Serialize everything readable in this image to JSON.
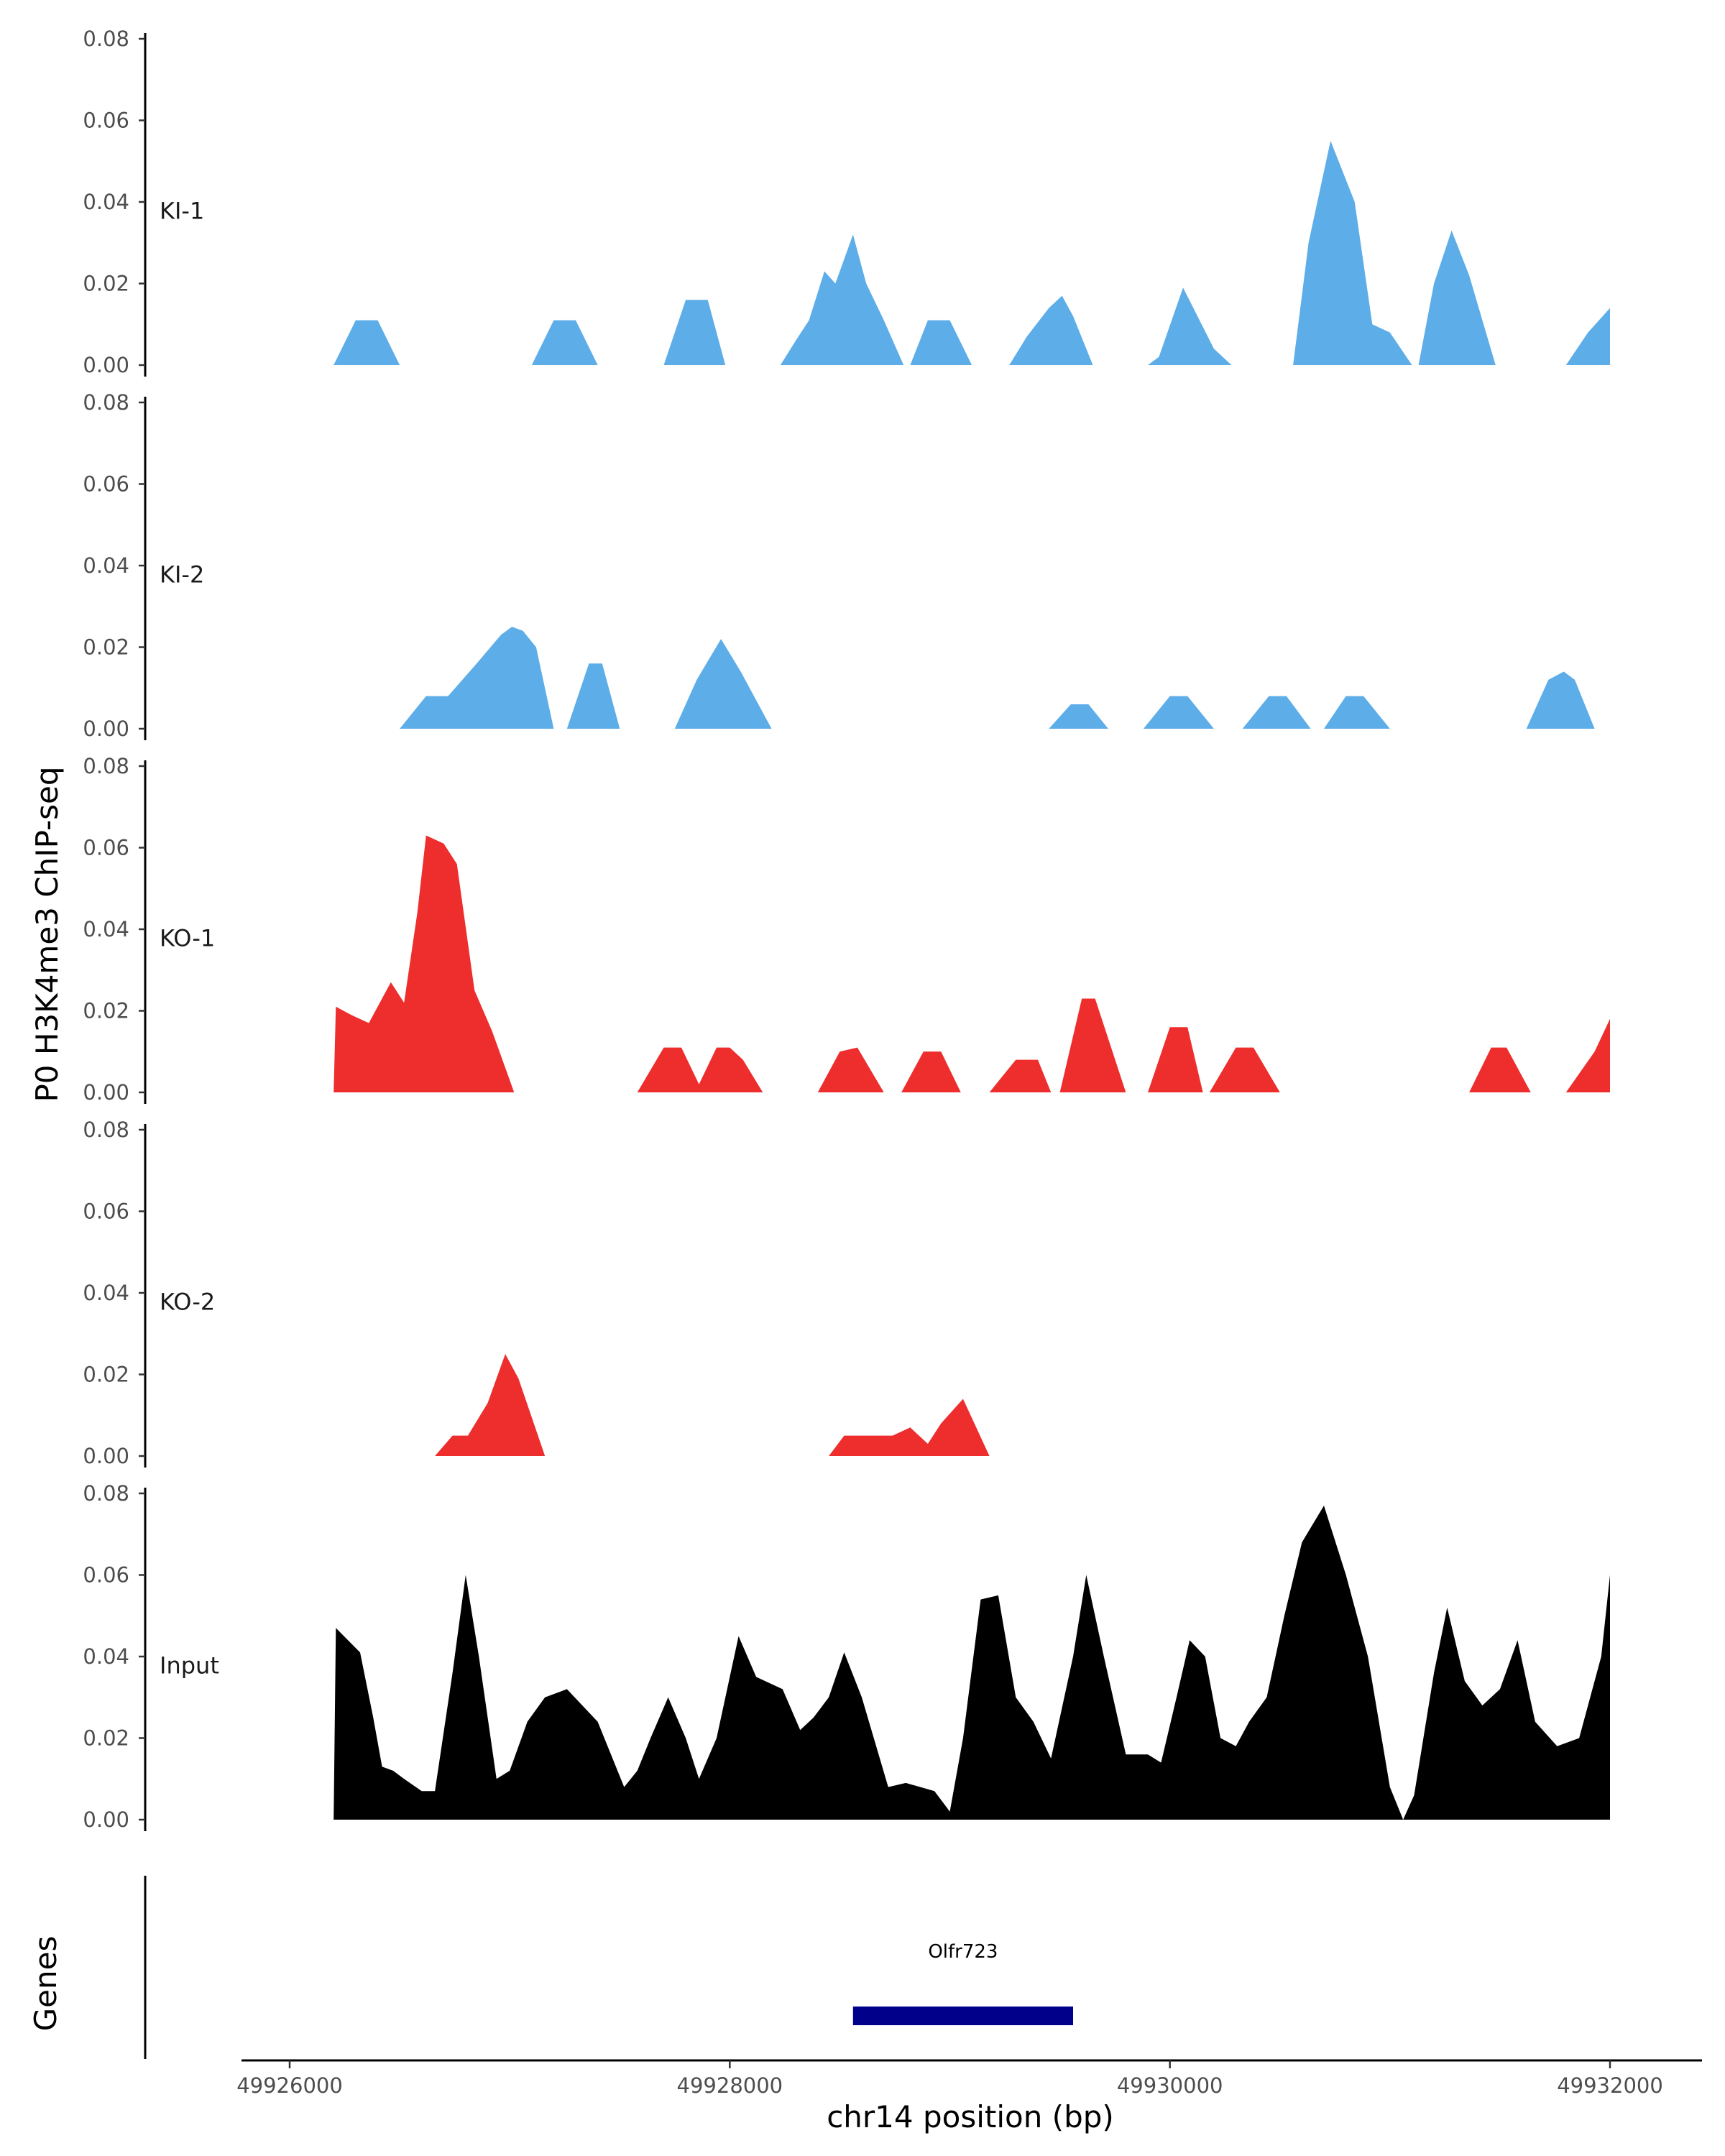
{
  "chart_data": {
    "type": "area",
    "ylabel": "P0 H3K4me3 ChIP-seq",
    "xlabel": "chr14 position (bp)",
    "genes_label": "Genes",
    "xlim": [
      49925900,
      49932200
    ],
    "ylim": [
      0,
      0.08
    ],
    "x_ticks": [
      49926000,
      49928000,
      49930000,
      49932000
    ],
    "x_tick_labels": [
      "49926000",
      "49928000",
      "49930000",
      "49932000"
    ],
    "y_ticks": [
      0,
      0.02,
      0.04,
      0.06,
      0.08
    ],
    "y_tick_labels": [
      "0.00",
      "0.02",
      "0.04",
      "0.06",
      "0.08"
    ],
    "colors": {
      "KI": "#5dade9",
      "KO": "#ee2d2d",
      "Input": "#000000",
      "gene": "#00008b"
    },
    "series": [
      {
        "name": "KI-1",
        "color": "#5dade9",
        "points": [
          [
            49926200,
            0
          ],
          [
            49926300,
            0.011
          ],
          [
            49926400,
            0.011
          ],
          [
            49926500,
            0
          ],
          [
            49927100,
            0
          ],
          [
            49927200,
            0.011
          ],
          [
            49927300,
            0.011
          ],
          [
            49927400,
            0
          ],
          [
            49927700,
            0
          ],
          [
            49927800,
            0.016
          ],
          [
            49927900,
            0.016
          ],
          [
            49927980,
            0
          ],
          [
            49928230,
            0
          ],
          [
            49928300,
            0.006
          ],
          [
            49928360,
            0.011
          ],
          [
            49928430,
            0.023
          ],
          [
            49928480,
            0.02
          ],
          [
            49928560,
            0.032
          ],
          [
            49928620,
            0.02
          ],
          [
            49928700,
            0.011
          ],
          [
            49928790,
            0
          ],
          [
            49928820,
            0
          ],
          [
            49928900,
            0.011
          ],
          [
            49929000,
            0.011
          ],
          [
            49929100,
            0
          ],
          [
            49929270,
            0
          ],
          [
            49929350,
            0.007
          ],
          [
            49929450,
            0.014
          ],
          [
            49929510,
            0.017
          ],
          [
            49929560,
            0.012
          ],
          [
            49929650,
            0
          ],
          [
            49929900,
            0
          ],
          [
            49929950,
            0.002
          ],
          [
            49930060,
            0.019
          ],
          [
            49930200,
            0.004
          ],
          [
            49930280,
            0
          ],
          [
            49930560,
            0
          ],
          [
            49930630,
            0.03
          ],
          [
            49930730,
            0.055
          ],
          [
            49930840,
            0.04
          ],
          [
            49930920,
            0.01
          ],
          [
            49931000,
            0.008
          ],
          [
            49931100,
            0
          ],
          [
            49931130,
            0
          ],
          [
            49931200,
            0.02
          ],
          [
            49931280,
            0.033
          ],
          [
            49931360,
            0.022
          ],
          [
            49931480,
            0
          ],
          [
            49931800,
            0
          ],
          [
            49931900,
            0.008
          ],
          [
            49932000,
            0.014
          ]
        ]
      },
      {
        "name": "KI-2",
        "color": "#5dade9",
        "points": [
          [
            49926500,
            0
          ],
          [
            49926620,
            0.008
          ],
          [
            49926720,
            0.008
          ],
          [
            49926850,
            0.016
          ],
          [
            49926960,
            0.023
          ],
          [
            49927010,
            0.025
          ],
          [
            49927060,
            0.024
          ],
          [
            49927120,
            0.02
          ],
          [
            49927200,
            0
          ],
          [
            49927260,
            0
          ],
          [
            49927360,
            0.016
          ],
          [
            49927420,
            0.016
          ],
          [
            49927500,
            0
          ],
          [
            49927750,
            0
          ],
          [
            49927850,
            0.012
          ],
          [
            49927960,
            0.022
          ],
          [
            49928050,
            0.014
          ],
          [
            49928190,
            0
          ],
          [
            49929450,
            0
          ],
          [
            49929550,
            0.006
          ],
          [
            49929630,
            0.006
          ],
          [
            49929720,
            0
          ],
          [
            49929880,
            0
          ],
          [
            49930000,
            0.008
          ],
          [
            49930080,
            0.008
          ],
          [
            49930200,
            0
          ],
          [
            49930330,
            0
          ],
          [
            49930450,
            0.008
          ],
          [
            49930530,
            0.008
          ],
          [
            49930640,
            0
          ],
          [
            49930700,
            0
          ],
          [
            49930800,
            0.008
          ],
          [
            49930880,
            0.008
          ],
          [
            49931000,
            0
          ],
          [
            49931620,
            0
          ],
          [
            49931720,
            0.012
          ],
          [
            49931790,
            0.014
          ],
          [
            49931840,
            0.012
          ],
          [
            49931930,
            0
          ]
        ]
      },
      {
        "name": "KO-1",
        "color": "#ee2d2d",
        "points": [
          [
            49926200,
            0
          ],
          [
            49926210,
            0.021
          ],
          [
            49926280,
            0.019
          ],
          [
            49926360,
            0.017
          ],
          [
            49926460,
            0.027
          ],
          [
            49926520,
            0.022
          ],
          [
            49926580,
            0.044
          ],
          [
            49926620,
            0.063
          ],
          [
            49926700,
            0.061
          ],
          [
            49926760,
            0.056
          ],
          [
            49926840,
            0.025
          ],
          [
            49926920,
            0.015
          ],
          [
            49927020,
            0
          ],
          [
            49927580,
            0
          ],
          [
            49927700,
            0.011
          ],
          [
            49927780,
            0.011
          ],
          [
            49927860,
            0.002
          ],
          [
            49927940,
            0.011
          ],
          [
            49928000,
            0.011
          ],
          [
            49928060,
            0.008
          ],
          [
            49928150,
            0
          ],
          [
            49928400,
            0
          ],
          [
            49928500,
            0.01
          ],
          [
            49928580,
            0.011
          ],
          [
            49928700,
            0
          ],
          [
            49928780,
            0
          ],
          [
            49928880,
            0.01
          ],
          [
            49928960,
            0.01
          ],
          [
            49929050,
            0
          ],
          [
            49929180,
            0
          ],
          [
            49929300,
            0.008
          ],
          [
            49929400,
            0.008
          ],
          [
            49929460,
            0
          ],
          [
            49929500,
            0
          ],
          [
            49929600,
            0.023
          ],
          [
            49929660,
            0.023
          ],
          [
            49929800,
            0
          ],
          [
            49929900,
            0
          ],
          [
            49930000,
            0.016
          ],
          [
            49930080,
            0.016
          ],
          [
            49930150,
            0
          ],
          [
            49930180,
            0
          ],
          [
            49930300,
            0.011
          ],
          [
            49930380,
            0.011
          ],
          [
            49930500,
            0
          ],
          [
            49931360,
            0
          ],
          [
            49931460,
            0.011
          ],
          [
            49931530,
            0.011
          ],
          [
            49931640,
            0
          ],
          [
            49931800,
            0
          ],
          [
            49931930,
            0.01
          ],
          [
            49932000,
            0.018
          ]
        ]
      },
      {
        "name": "KO-2",
        "color": "#ee2d2d",
        "points": [
          [
            49926660,
            0
          ],
          [
            49926740,
            0.005
          ],
          [
            49926810,
            0.005
          ],
          [
            49926900,
            0.013
          ],
          [
            49926980,
            0.025
          ],
          [
            49927040,
            0.019
          ],
          [
            49927160,
            0
          ],
          [
            49928450,
            0
          ],
          [
            49928520,
            0.005
          ],
          [
            49928740,
            0.005
          ],
          [
            49928820,
            0.007
          ],
          [
            49928900,
            0.003
          ],
          [
            49928960,
            0.008
          ],
          [
            49929060,
            0.014
          ],
          [
            49929180,
            0
          ]
        ]
      },
      {
        "name": "Input",
        "color": "#000000",
        "points": [
          [
            49926200,
            0
          ],
          [
            49926210,
            0.047
          ],
          [
            49926320,
            0.041
          ],
          [
            49926380,
            0.025
          ],
          [
            49926420,
            0.013
          ],
          [
            49926470,
            0.012
          ],
          [
            49926520,
            0.01
          ],
          [
            49926600,
            0.007
          ],
          [
            49926660,
            0.007
          ],
          [
            49926740,
            0.036
          ],
          [
            49926800,
            0.06
          ],
          [
            49926860,
            0.04
          ],
          [
            49926940,
            0.01
          ],
          [
            49927000,
            0.012
          ],
          [
            49927080,
            0.024
          ],
          [
            49927160,
            0.03
          ],
          [
            49927260,
            0.032
          ],
          [
            49927400,
            0.024
          ],
          [
            49927520,
            0.008
          ],
          [
            49927580,
            0.012
          ],
          [
            49927640,
            0.02
          ],
          [
            49927720,
            0.03
          ],
          [
            49927800,
            0.02
          ],
          [
            49927860,
            0.01
          ],
          [
            49927940,
            0.02
          ],
          [
            49928040,
            0.045
          ],
          [
            49928120,
            0.035
          ],
          [
            49928240,
            0.032
          ],
          [
            49928320,
            0.022
          ],
          [
            49928380,
            0.025
          ],
          [
            49928450,
            0.03
          ],
          [
            49928520,
            0.041
          ],
          [
            49928600,
            0.03
          ],
          [
            49928720,
            0.008
          ],
          [
            49928800,
            0.009
          ],
          [
            49928930,
            0.007
          ],
          [
            49929000,
            0.002
          ],
          [
            49929060,
            0.02
          ],
          [
            49929140,
            0.054
          ],
          [
            49929220,
            0.055
          ],
          [
            49929300,
            0.03
          ],
          [
            49929380,
            0.024
          ],
          [
            49929460,
            0.015
          ],
          [
            49929560,
            0.04
          ],
          [
            49929620,
            0.06
          ],
          [
            49929700,
            0.04
          ],
          [
            49929800,
            0.016
          ],
          [
            49929900,
            0.016
          ],
          [
            49929960,
            0.014
          ],
          [
            49930030,
            0.03
          ],
          [
            49930090,
            0.044
          ],
          [
            49930160,
            0.04
          ],
          [
            49930230,
            0.02
          ],
          [
            49930300,
            0.018
          ],
          [
            49930360,
            0.024
          ],
          [
            49930440,
            0.03
          ],
          [
            49930520,
            0.05
          ],
          [
            49930600,
            0.068
          ],
          [
            49930700,
            0.077
          ],
          [
            49930800,
            0.06
          ],
          [
            49930900,
            0.04
          ],
          [
            49931000,
            0.008
          ],
          [
            49931060,
            0
          ],
          [
            49931110,
            0.006
          ],
          [
            49931200,
            0.036
          ],
          [
            49931260,
            0.052
          ],
          [
            49931340,
            0.034
          ],
          [
            49931420,
            0.028
          ],
          [
            49931500,
            0.032
          ],
          [
            49931580,
            0.044
          ],
          [
            49931660,
            0.024
          ],
          [
            49931760,
            0.018
          ],
          [
            49931860,
            0.02
          ],
          [
            49931960,
            0.04
          ],
          [
            49932000,
            0.06
          ],
          [
            49932000,
            0
          ]
        ]
      }
    ],
    "genes": [
      {
        "name": "Olfr723",
        "start": 49928560,
        "end": 49929560,
        "color": "#00008b"
      }
    ]
  }
}
